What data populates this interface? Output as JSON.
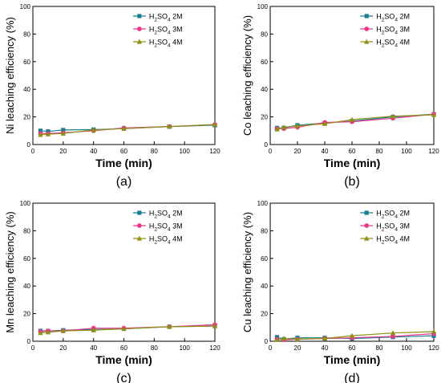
{
  "colors": {
    "2M": "#1a7d91",
    "3M": "#e8388a",
    "4M": "#8f8f14",
    "axis": "#000000"
  },
  "legend_labels": [
    {
      "main": "H",
      "sub": "2",
      "rest": "SO",
      "sub2": "4",
      "tail": " 2M"
    },
    {
      "main": "H",
      "sub": "2",
      "rest": "SO",
      "sub2": "4",
      "tail": " 3M"
    },
    {
      "main": "H",
      "sub": "2",
      "rest": "SO",
      "sub2": "4",
      "tail": " 4M"
    }
  ],
  "chart_data": [
    {
      "type": "line",
      "panel_label": "(a)",
      "xlabel": "Time (min)",
      "ylabel": "Ni leaching efficiency (%)",
      "xlim": [
        0,
        120
      ],
      "ylim": [
        0,
        100
      ],
      "xticks": [
        0,
        20,
        40,
        60,
        80,
        100,
        120
      ],
      "yticks": [
        0,
        20,
        40,
        60,
        80,
        100
      ],
      "legend_position": "top-right",
      "grid": false,
      "x": [
        5,
        10,
        20,
        40,
        60,
        90,
        120
      ],
      "series": [
        {
          "name": "H2SO4 2M",
          "key": "2M",
          "marker": "square",
          "values": [
            10,
            9.5,
            10.5,
            10.8,
            11.5,
            13,
            14
          ]
        },
        {
          "name": "H2SO4 3M",
          "key": "3M",
          "marker": "circle",
          "values": [
            8,
            8,
            8.5,
            10,
            12,
            13,
            14.5
          ]
        },
        {
          "name": "H2SO4 4M",
          "key": "4M",
          "marker": "triangle",
          "values": [
            7,
            7.5,
            8,
            10.5,
            11.5,
            13,
            14.5
          ]
        }
      ]
    },
    {
      "type": "line",
      "panel_label": "(b)",
      "xlabel": "Time (min)",
      "ylabel": "Co leaching efficiency (%)",
      "xlim": [
        0,
        120
      ],
      "ylim": [
        0,
        100
      ],
      "xticks": [
        0,
        20,
        40,
        60,
        80,
        100,
        120
      ],
      "yticks": [
        0,
        20,
        40,
        60,
        80,
        100
      ],
      "legend_position": "top-right",
      "grid": false,
      "x": [
        5,
        10,
        20,
        40,
        60,
        90,
        120
      ],
      "series": [
        {
          "name": "H2SO4 2M",
          "key": "2M",
          "marker": "square",
          "values": [
            12,
            12,
            14,
            15.5,
            17,
            20,
            22
          ]
        },
        {
          "name": "H2SO4 3M",
          "key": "3M",
          "marker": "circle",
          "values": [
            11.5,
            11.5,
            12.5,
            16,
            16.5,
            19,
            22
          ]
        },
        {
          "name": "H2SO4 4M",
          "key": "4M",
          "marker": "triangle",
          "values": [
            11,
            12.5,
            13.5,
            15,
            18,
            20.5,
            21.5
          ]
        }
      ]
    },
    {
      "type": "line",
      "panel_label": "(c)",
      "xlabel": "Time (min)",
      "ylabel": "Mn leaching efficiency (%)",
      "xlim": [
        0,
        120
      ],
      "ylim": [
        0,
        100
      ],
      "xticks": [
        0,
        20,
        40,
        60,
        80,
        100,
        120
      ],
      "yticks": [
        0,
        20,
        40,
        60,
        80,
        100
      ],
      "legend_position": "top-right",
      "grid": false,
      "x": [
        5,
        10,
        20,
        40,
        60,
        90,
        120
      ],
      "series": [
        {
          "name": "H2SO4 2M",
          "key": "2M",
          "marker": "square",
          "values": [
            7.5,
            7.5,
            8,
            8.5,
            9,
            10.5,
            11
          ]
        },
        {
          "name": "H2SO4 3M",
          "key": "3M",
          "marker": "circle",
          "values": [
            7,
            7.5,
            7.5,
            9.5,
            9.5,
            10.5,
            12
          ]
        },
        {
          "name": "H2SO4 4M",
          "key": "4M",
          "marker": "triangle",
          "values": [
            6,
            6.5,
            7.5,
            8,
            9,
            10.5,
            11
          ]
        }
      ]
    },
    {
      "type": "line",
      "panel_label": "(d)",
      "xlabel": "Time (min)",
      "ylabel": "Cu leaching efficiency (%)",
      "xlim": [
        0,
        120
      ],
      "ylim": [
        0,
        100
      ],
      "xticks": [
        0,
        20,
        40,
        60,
        80,
        100,
        120
      ],
      "yticks": [
        0,
        20,
        40,
        60,
        80,
        100
      ],
      "legend_position": "top-right",
      "grid": false,
      "x": [
        5,
        10,
        20,
        40,
        60,
        90,
        120
      ],
      "series": [
        {
          "name": "H2SO4 2M",
          "key": "2M",
          "marker": "square",
          "values": [
            3,
            1.5,
            2.5,
            2.5,
            2,
            3,
            4
          ]
        },
        {
          "name": "H2SO4 3M",
          "key": "3M",
          "marker": "circle",
          "values": [
            1.5,
            1,
            1.5,
            2,
            2.5,
            3.5,
            5.5
          ]
        },
        {
          "name": "H2SO4 4M",
          "key": "4M",
          "marker": "triangle",
          "values": [
            1,
            2,
            1.5,
            2,
            4,
            6,
            7
          ]
        }
      ]
    }
  ]
}
